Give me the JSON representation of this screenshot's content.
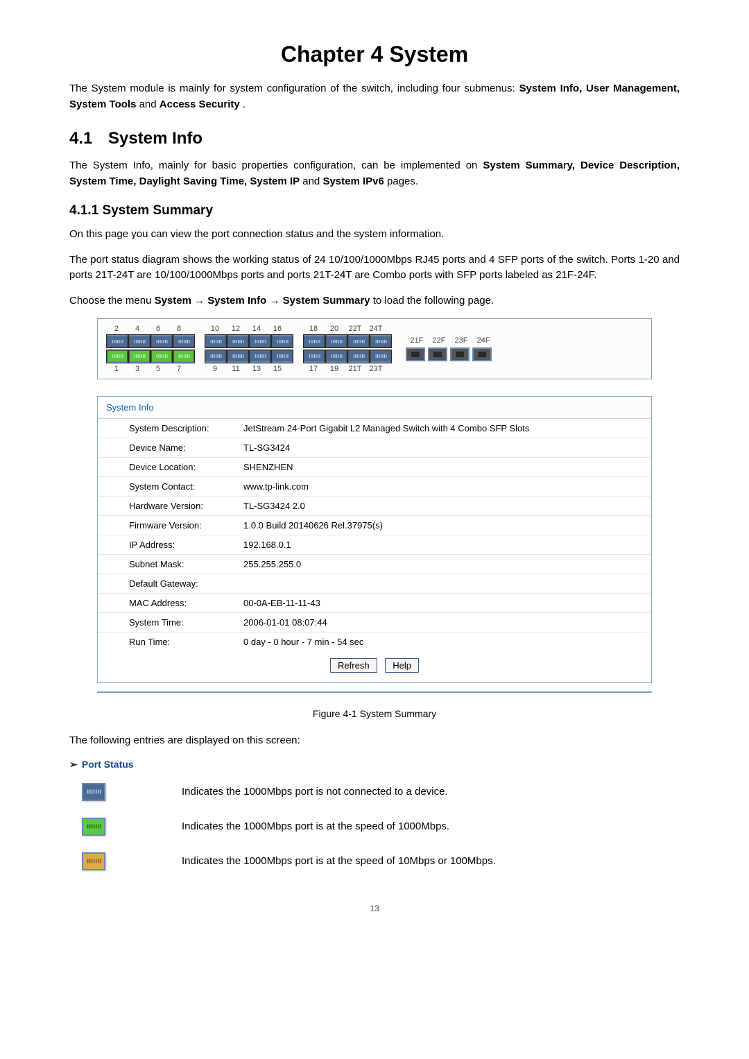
{
  "chapter": {
    "title": "Chapter 4  System"
  },
  "intro": "The System module is mainly for system configuration of the switch, including four submenus: ",
  "intro_bold": "System Info, User Management, System Tools",
  "intro_and": " and ",
  "intro_bold2": "Access Security",
  "intro_end": ".",
  "section41": {
    "num": "4.1",
    "title": "System Info"
  },
  "section41_desc1": "The System Info, mainly for basic properties configuration, can be implemented on ",
  "section41_desc_bold": "System Summary, Device Description, System Time, Daylight Saving Time, System IP",
  "section41_desc_and": " and ",
  "section41_desc_bold2": "System IPv6",
  "section41_desc_end": " pages.",
  "section411": {
    "title": "4.1.1 System Summary"
  },
  "body1": "On this page you can view the port connection status and the system information.",
  "body2": "The port status diagram shows the working status of 24 10/100/1000Mbps RJ45 ports and 4 SFP ports of the switch. Ports 1-20 and ports 21T-24T are 10/100/1000Mbps ports and ports 21T-24T are Combo ports with SFP ports labeled as 21F-24F.",
  "body3_pre": "Choose the menu ",
  "body3_b1": "System",
  "body3_ar": " →",
  "body3_b2": "System Info",
  "body3_b3": "System Summary",
  "body3_end": " to load the following page.",
  "ports": {
    "group1": {
      "top_labels": [
        "2",
        "4",
        "6",
        "8"
      ],
      "bottom_labels": [
        "1",
        "3",
        "5",
        "7"
      ],
      "top_states": [
        "u",
        "u",
        "u",
        "u"
      ],
      "bottom_states": [
        "g",
        "g",
        "g",
        "g"
      ]
    },
    "group2": {
      "top_labels": [
        "10",
        "12",
        "14",
        "16"
      ],
      "bottom_labels": [
        "9",
        "11",
        "13",
        "15"
      ],
      "top_states": [
        "u",
        "u",
        "u",
        "u"
      ],
      "bottom_states": [
        "u",
        "u",
        "u",
        "u"
      ]
    },
    "group3": {
      "top_labels": [
        "18",
        "20",
        "22T",
        "24T"
      ],
      "bottom_labels": [
        "17",
        "19",
        "21T",
        "23T"
      ],
      "top_states": [
        "u",
        "u",
        "u",
        "u"
      ],
      "bottom_states": [
        "u",
        "u",
        "u",
        "u"
      ]
    },
    "sfp": {
      "labels": [
        "21F",
        "22F",
        "23F",
        "24F"
      ]
    }
  },
  "sysinfo": {
    "header": "System Info",
    "rows": [
      {
        "label": "System Description:",
        "value": "JetStream 24-Port Gigabit L2 Managed Switch with 4 Combo SFP Slots"
      },
      {
        "label": "Device Name:",
        "value": "TL-SG3424"
      },
      {
        "label": "Device Location:",
        "value": "SHENZHEN"
      },
      {
        "label": "System Contact:",
        "value": "www.tp-link.com"
      },
      {
        "label": "Hardware Version:",
        "value": "TL-SG3424 2.0"
      },
      {
        "label": "Firmware Version:",
        "value": "1.0.0 Build 20140626 Rel.37975(s)"
      },
      {
        "label": "IP Address:",
        "value": "192.168.0.1"
      },
      {
        "label": "Subnet Mask:",
        "value": "255.255.255.0"
      },
      {
        "label": "Default Gateway:",
        "value": ""
      },
      {
        "label": "MAC Address:",
        "value": "00-0A-EB-11-11-43"
      },
      {
        "label": "System Time:",
        "value": "2006-01-01 08:07:44"
      },
      {
        "label": "Run Time:",
        "value": "0 day - 0 hour - 7 min - 54 sec"
      }
    ],
    "buttons": {
      "refresh": "Refresh",
      "help": "Help"
    }
  },
  "fig_caption": "Figure 4-1 System Summary",
  "body4": "The following entries are displayed on this screen:",
  "port_status_head": "Port Status",
  "legend": [
    {
      "color": "blue",
      "text": "Indicates the 1000Mbps port is not connected to a device."
    },
    {
      "color": "green",
      "text": "Indicates the 1000Mbps port is at the speed of 1000Mbps."
    },
    {
      "color": "yellow",
      "text": "Indicates the 1000Mbps port is at the speed of 10Mbps or 100Mbps."
    }
  ],
  "page_num": "13",
  "colors": {
    "border_panel": "#7aa0c4",
    "port_blue": "#4a6a95",
    "port_green": "#58c63a",
    "port_yellow": "#e0a94a",
    "link_color": "#1a5fb0"
  }
}
